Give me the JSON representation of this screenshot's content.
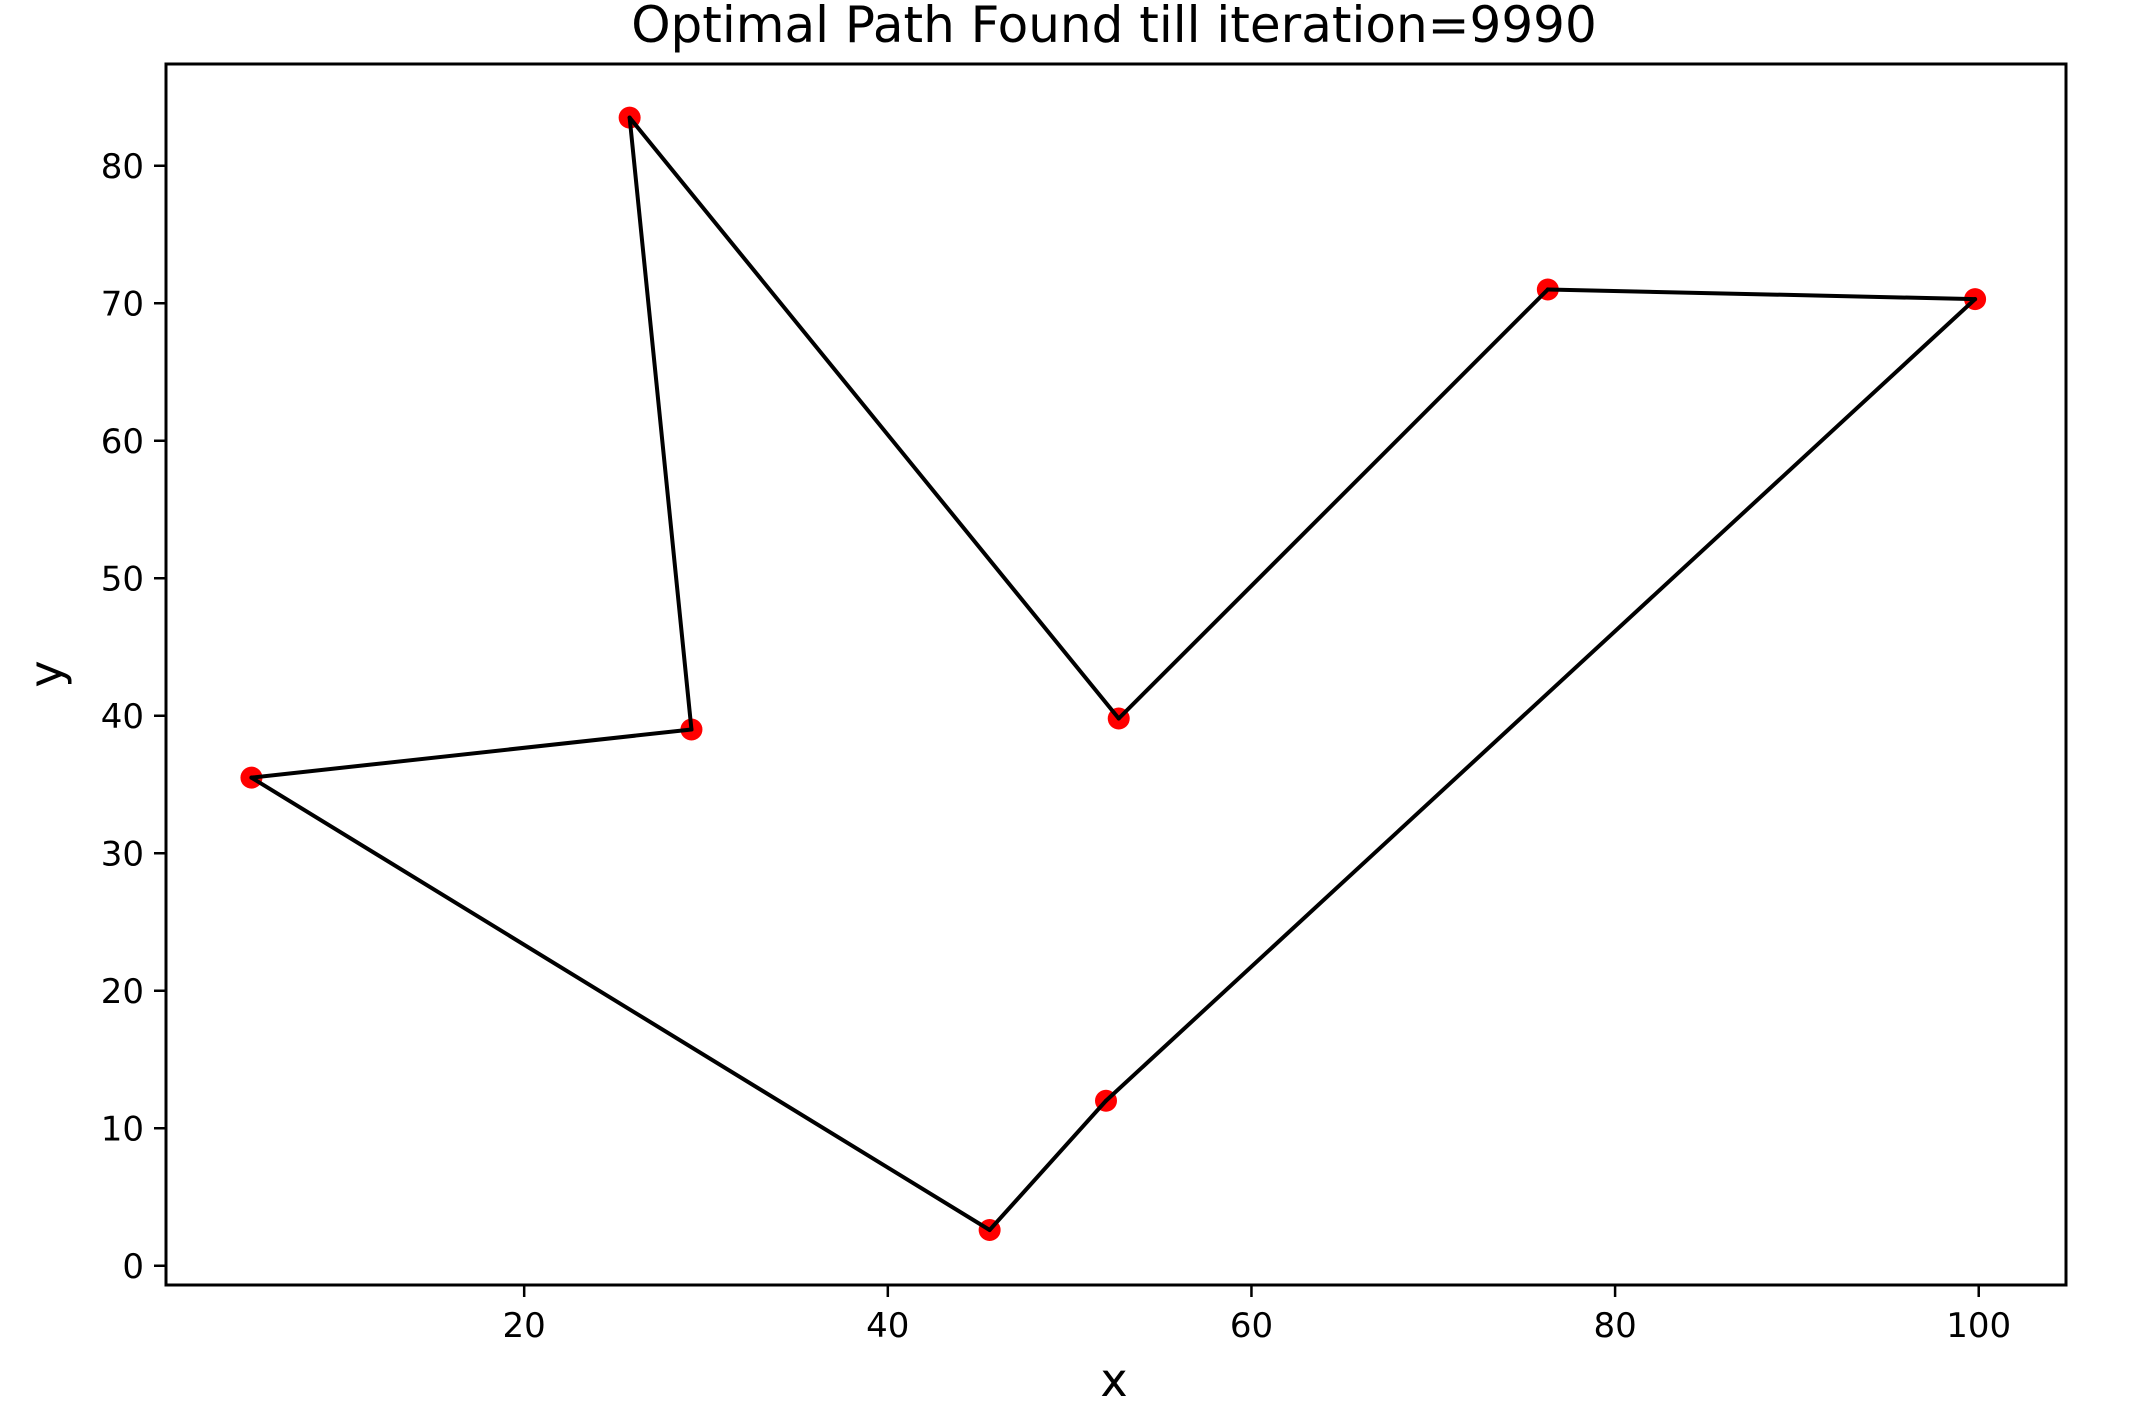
{
  "chart_data": {
    "type": "line",
    "title": "Optimal Path Found till iteration=9990",
    "xlabel": "x",
    "ylabel": "y",
    "xlim": [
      0.3,
      104.8
    ],
    "ylim": [
      -1.4,
      87.4
    ],
    "xticks": [
      20,
      40,
      60,
      80,
      100
    ],
    "yticks": [
      0,
      10,
      20,
      30,
      40,
      50,
      60,
      70,
      80
    ],
    "grid": false,
    "legend": "none",
    "series": [
      {
        "kind": "path",
        "color": "#000000",
        "x": [
          25.8,
          29.2,
          5.0,
          45.6,
          52.0,
          99.8,
          76.3,
          52.7,
          25.8
        ],
        "y": [
          83.5,
          39.0,
          35.5,
          2.6,
          12.0,
          70.3,
          71.0,
          39.8,
          83.5
        ]
      },
      {
        "kind": "points",
        "color": "#ff0000",
        "x": [
          25.8,
          29.2,
          5.0,
          45.6,
          52.0,
          99.8,
          76.3,
          52.7
        ],
        "y": [
          83.5,
          39.0,
          35.5,
          2.6,
          12.0,
          70.3,
          71.0,
          39.8
        ]
      }
    ]
  }
}
